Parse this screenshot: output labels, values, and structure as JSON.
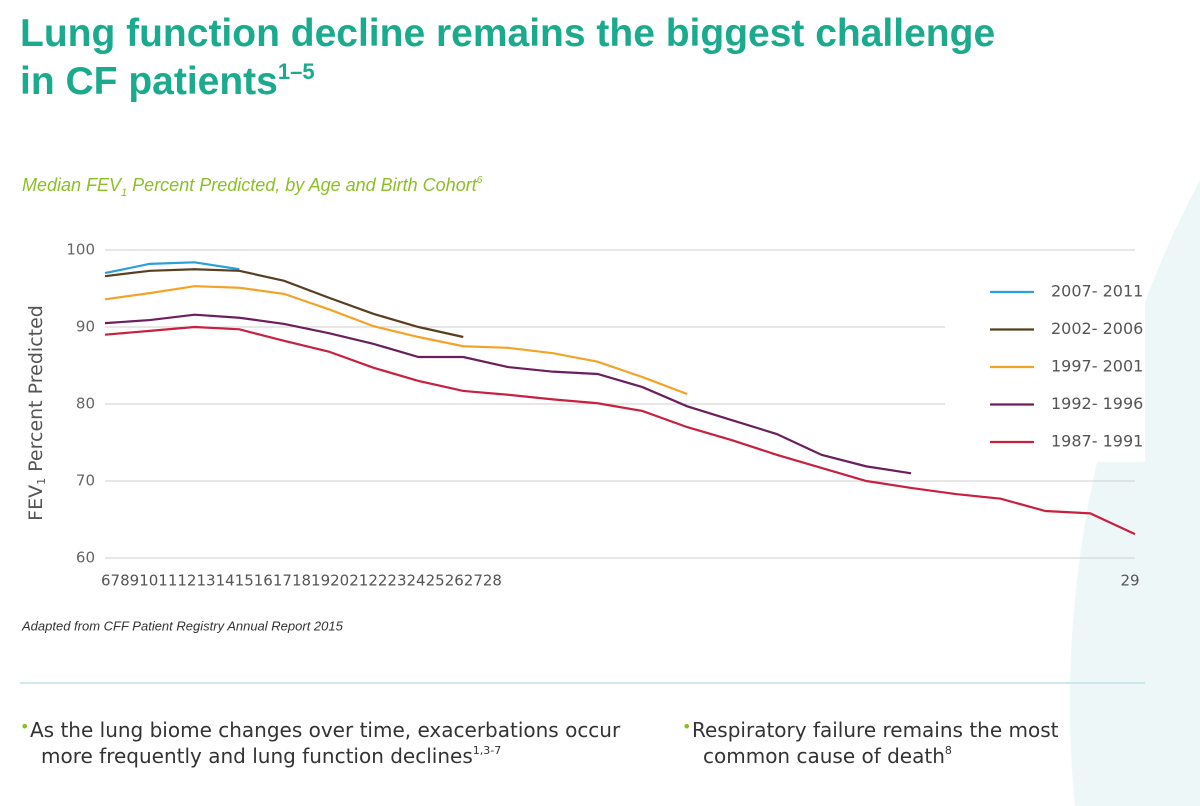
{
  "chart_data": {
    "type": "line",
    "title": "Lung function decline remains the biggest challenge in CF patients",
    "title_ref": "1–5",
    "subtitle": {
      "text": "Median FEV",
      "sub": "1",
      "rest": " Percent Predicted, by Age and Birth Cohort",
      "ref": "6"
    },
    "y_label": {
      "text": "FEV",
      "sub": "1",
      "rest": " Percent Predicted"
    },
    "categories": [
      6,
      7,
      8,
      9,
      10,
      11,
      12,
      13,
      14,
      15,
      16,
      17,
      18,
      19,
      20,
      21,
      22,
      23,
      24,
      25,
      26,
      27,
      28,
      29
    ],
    "ylim": [
      60,
      100
    ],
    "yticks": [
      60,
      70,
      80,
      90,
      100
    ],
    "grid": true,
    "legend": "right",
    "series": [
      {
        "name": "2007- 2011",
        "color": "#2a9fd8",
        "values": [
          97.0,
          98.2,
          98.4,
          97.5,
          null,
          null,
          null,
          null,
          null,
          null,
          null,
          null,
          null,
          null,
          null,
          null,
          null,
          null,
          null,
          null,
          null,
          null,
          null,
          null
        ]
      },
      {
        "name": "2002- 2006",
        "color": "#5a3e22",
        "values": [
          96.6,
          97.3,
          97.5,
          97.3,
          96.0,
          93.8,
          91.7,
          90.0,
          88.7,
          null,
          null,
          null,
          null,
          null,
          null,
          null,
          null,
          null,
          null,
          null,
          null,
          null,
          null,
          null
        ]
      },
      {
        "name": "1997- 2001",
        "color": "#f5a228",
        "values": [
          93.6,
          94.4,
          95.3,
          95.1,
          94.3,
          92.3,
          90.1,
          88.7,
          87.5,
          87.3,
          86.6,
          85.5,
          83.5,
          81.3,
          null,
          null,
          null,
          null,
          null,
          null,
          null,
          null,
          null,
          null
        ]
      },
      {
        "name": "1992- 1996",
        "color": "#6b1f5c",
        "values": [
          90.5,
          90.9,
          91.6,
          91.2,
          90.4,
          89.2,
          87.8,
          86.1,
          86.1,
          84.8,
          84.2,
          83.9,
          82.2,
          79.7,
          77.9,
          76.1,
          73.4,
          71.9,
          71.0,
          null,
          null,
          null,
          null,
          null
        ]
      },
      {
        "name": "1987- 1991",
        "color": "#c8203f",
        "values": [
          89.0,
          89.5,
          90.0,
          89.7,
          88.2,
          86.8,
          84.7,
          83.0,
          81.7,
          81.2,
          80.6,
          80.1,
          79.1,
          77.0,
          75.3,
          73.4,
          71.7,
          70.0,
          69.1,
          68.3,
          67.7,
          66.1,
          65.8,
          63.1
        ]
      }
    ],
    "source": "Adapted from CFF Patient Registry Annual Report 2015"
  },
  "bullets": [
    {
      "lines": [
        "As the lung biome changes over time, exacerbations occur",
        "more frequently and lung function declines"
      ],
      "ref": "1,3-7"
    },
    {
      "lines": [
        "Respiratory failure remains the most",
        "common cause of death"
      ],
      "ref": "8"
    }
  ]
}
